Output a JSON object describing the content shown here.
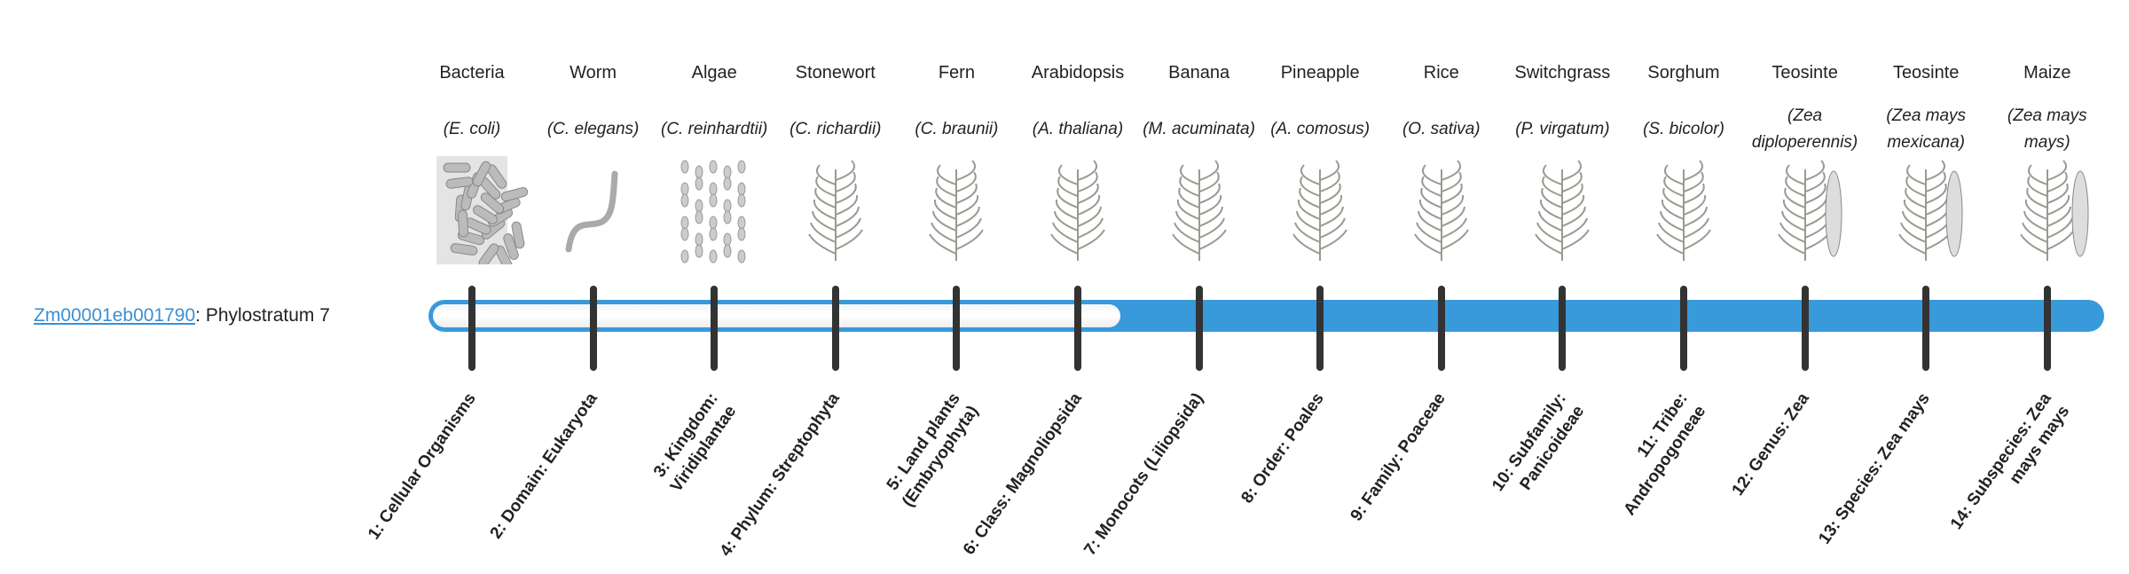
{
  "gene": {
    "id": "Zm00001eb001790",
    "separator": ":",
    "stratum": " Phylostratum 7"
  },
  "progress": {
    "current_stratum": 7,
    "total_strata": 14,
    "fill_color": "#3899db"
  },
  "columns": [
    {
      "common": "Bacteria",
      "species": "(E. coli)",
      "icon": "bacteria-illustration",
      "stage": "1: Cellular Organisms"
    },
    {
      "common": "Worm",
      "species": "(C. elegans)",
      "icon": "worm-illustration",
      "stage": "2: Domain: Eukaryota"
    },
    {
      "common": "Algae",
      "species": "(C. reinhardtii)",
      "icon": "algae-illustration",
      "stage": "3: Kingdom: Viridiplantae"
    },
    {
      "common": "Stonewort",
      "species": "(C. richardii)",
      "icon": "stonewort-illustration",
      "stage": "4: Phylum: Streptophyta"
    },
    {
      "common": "Fern",
      "species": "(C. braunii)",
      "icon": "fern-illustration",
      "stage": "5: Land plants (Embryophyta)"
    },
    {
      "common": "Arabidopsis",
      "species": "(A. thaliana)",
      "icon": "arabidopsis-illustration",
      "stage": "6: Class: Magnoliopsida"
    },
    {
      "common": "Banana",
      "species": "(M. acuminata)",
      "icon": "banana-illustration",
      "stage": "7: Monocots (Liliopsida)"
    },
    {
      "common": "Pineapple",
      "species": "(A. comosus)",
      "icon": "pineapple-illustration",
      "stage": "8: Order: Poales"
    },
    {
      "common": "Rice",
      "species": "(O. sativa)",
      "icon": "rice-illustration",
      "stage": "9: Family: Poaceae"
    },
    {
      "common": "Switchgrass",
      "species": "(P. virgatum)",
      "icon": "switchgrass-illustration",
      "stage": "10: Subfamily: Panicoideae"
    },
    {
      "common": "Sorghum",
      "species": "(S. bicolor)",
      "icon": "sorghum-illustration",
      "stage": "11: Tribe: Andropogoneae"
    },
    {
      "common": "Teosinte",
      "species": "(Zea diploperennis)",
      "icon": "teosinte-illustration",
      "stage": "12: Genus: Zea"
    },
    {
      "common": "Teosinte",
      "species": "(Zea mays mexicana)",
      "icon": "teosinte-illustration",
      "stage": "13: Species: Zea mays"
    },
    {
      "common": "Maize",
      "species": "(Zea mays mays)",
      "icon": "maize-illustration",
      "stage": "14: Subspecies: Zea mays mays"
    }
  ]
}
